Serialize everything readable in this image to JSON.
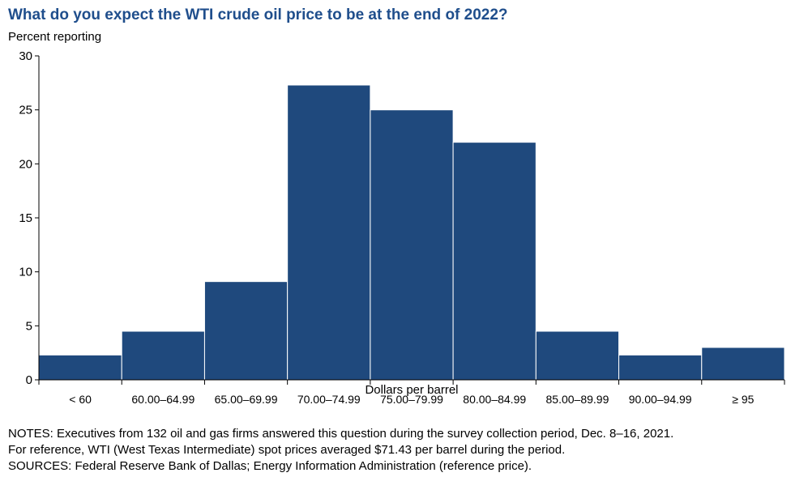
{
  "chart_data": {
    "type": "bar",
    "title": "What do you expect the WTI crude oil price to be at the end of 2022?",
    "ylabel": "Percent reporting",
    "xlabel": "Dollars per barrel",
    "categories": [
      "< 60",
      "60.00–64.99",
      "65.00–69.99",
      "70.00–74.99",
      "75.00–79.99",
      "80.00–84.99",
      "85.00–89.99",
      "90.00–94.99",
      "≥ 95"
    ],
    "values": [
      2.3,
      4.5,
      9.1,
      27.3,
      25.0,
      22.0,
      4.5,
      2.3,
      3.0
    ],
    "ylim": [
      0,
      30
    ],
    "yticks": [
      0,
      5,
      10,
      15,
      20,
      25,
      30
    ],
    "bar_color": "#1f497d",
    "grid": false
  },
  "notes": [
    "NOTES: Executives from 132 oil and gas firms answered this question during the survey collection period, Dec. 8–16, 2021.",
    "For reference, WTI (West Texas Intermediate) spot prices averaged $71.43 per barrel during the period.",
    "SOURCES: Federal Reserve Bank of Dallas; Energy Information Administration (reference price)."
  ]
}
